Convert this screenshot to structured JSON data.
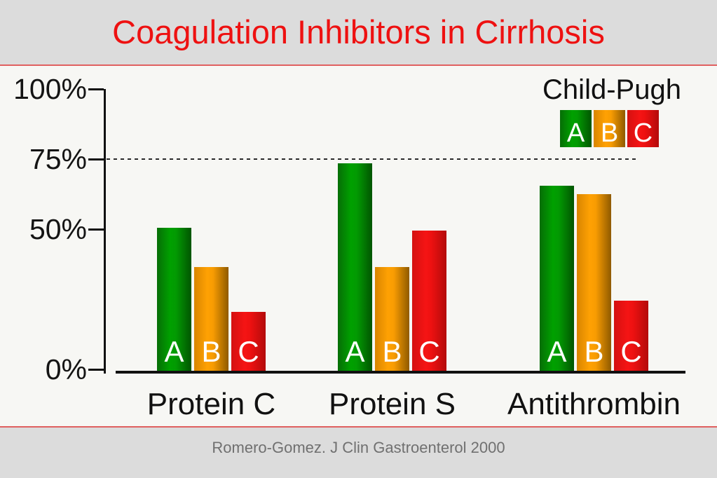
{
  "slide": {
    "title": "Coagulation Inhibitors in Cirrhosis",
    "footer_citation": "Romero-Gomez. J Clin Gastroenterol 2000"
  },
  "legend": {
    "title": "Child-Pugh",
    "items": [
      {
        "label": "A",
        "color": "#00a000"
      },
      {
        "label": "B",
        "color": "#ffa103"
      },
      {
        "label": "C",
        "color": "#ee1111"
      }
    ]
  },
  "chart_data": {
    "type": "bar",
    "title": "Coagulation Inhibitors in Cirrhosis",
    "categories": [
      "Protein C",
      "Protein S",
      "Antithrombin"
    ],
    "series": [
      {
        "name": "A",
        "color": "#00a000",
        "values": [
          51,
          74,
          66
        ]
      },
      {
        "name": "B",
        "color": "#ffa103",
        "values": [
          37,
          37,
          63
        ]
      },
      {
        "name": "C",
        "color": "#ee1111",
        "values": [
          21,
          50,
          25
        ]
      }
    ],
    "xlabel": "",
    "ylabel": "",
    "ylim": [
      0,
      100
    ],
    "yticks": [
      "100%",
      "75%",
      "50%",
      "0%"
    ],
    "ytick_values": [
      100,
      75,
      50,
      0
    ],
    "reference_line": {
      "value": 75,
      "style": "dashed",
      "color": "#2a2a2a"
    },
    "grid": false,
    "legend_title": "Child-Pugh",
    "legend_position": "top-right",
    "bar_letter_labels": true,
    "unit": "%"
  },
  "colors": {
    "title_red": "#ee1111",
    "divider_red": "#e06060",
    "header_footer_bg": "#dcdcdc",
    "plot_bg": "#f7f7f4",
    "axis_black": "#111111",
    "footer_text_gray": "#707070"
  }
}
